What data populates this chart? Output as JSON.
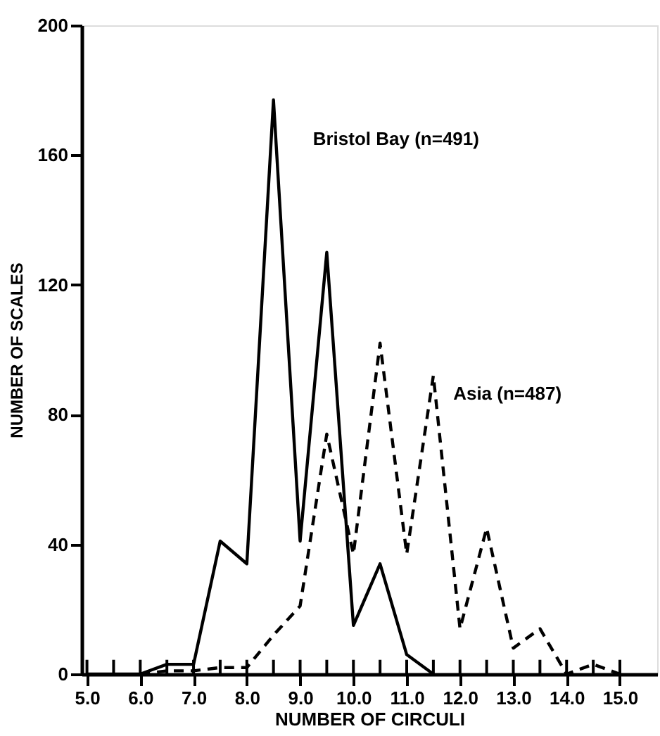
{
  "chart_data": {
    "type": "line",
    "xlabel": "NUMBER OF CIRCULI",
    "ylabel": "NUMBER OF SCALES",
    "xlim": [
      4.9,
      15.7
    ],
    "ylim": [
      0,
      200
    ],
    "yticks": [
      0,
      40,
      80,
      120,
      160,
      200
    ],
    "xticks": [
      {
        "value": 5,
        "label": "5.0"
      },
      {
        "value": 5.5,
        "label": null
      },
      {
        "value": 6,
        "label": "6.0"
      },
      {
        "value": 6.5,
        "label": null
      },
      {
        "value": 7,
        "label": "7.0"
      },
      {
        "value": 7.5,
        "label": null
      },
      {
        "value": 8,
        "label": "8.0"
      },
      {
        "value": 8.5,
        "label": null
      },
      {
        "value": 9,
        "label": "9.0"
      },
      {
        "value": 9.5,
        "label": null
      },
      {
        "value": 10,
        "label": "10.0"
      },
      {
        "value": 10.5,
        "label": null
      },
      {
        "value": 11,
        "label": "11.0"
      },
      {
        "value": 11.5,
        "label": null
      },
      {
        "value": 12,
        "label": "12.0"
      },
      {
        "value": 12.5,
        "label": null
      },
      {
        "value": 13,
        "label": "13.0"
      },
      {
        "value": 13.5,
        "label": null
      },
      {
        "value": 14,
        "label": "14.0"
      },
      {
        "value": 14.5,
        "label": null
      },
      {
        "value": 15,
        "label": "15.0"
      }
    ],
    "grid": false,
    "marker": "none",
    "series": [
      {
        "name": "Bristol Bay (n=491)",
        "color": "#000000",
        "line_style": "solid",
        "x": [
          5,
          5.5,
          6,
          6.5,
          7,
          7.5,
          8,
          8.5,
          9,
          9.5,
          10,
          10.5,
          11,
          11.5
        ],
        "values": [
          0,
          0,
          0,
          3,
          3,
          41,
          34,
          177,
          41,
          130,
          15,
          34,
          6,
          0
        ]
      },
      {
        "name": "Asia (n=487)",
        "color": "#000000",
        "line_style": "dashed",
        "x": [
          6,
          6.5,
          7,
          7.5,
          8,
          8.5,
          9,
          9.5,
          10,
          10.5,
          11,
          11.5,
          12,
          12.5,
          13,
          13.5,
          14,
          14.5,
          15
        ],
        "values": [
          0,
          1,
          1,
          2,
          2,
          12,
          21,
          74,
          37,
          102,
          37,
          92,
          14,
          45,
          8,
          14,
          0,
          3,
          0
        ]
      }
    ]
  }
}
